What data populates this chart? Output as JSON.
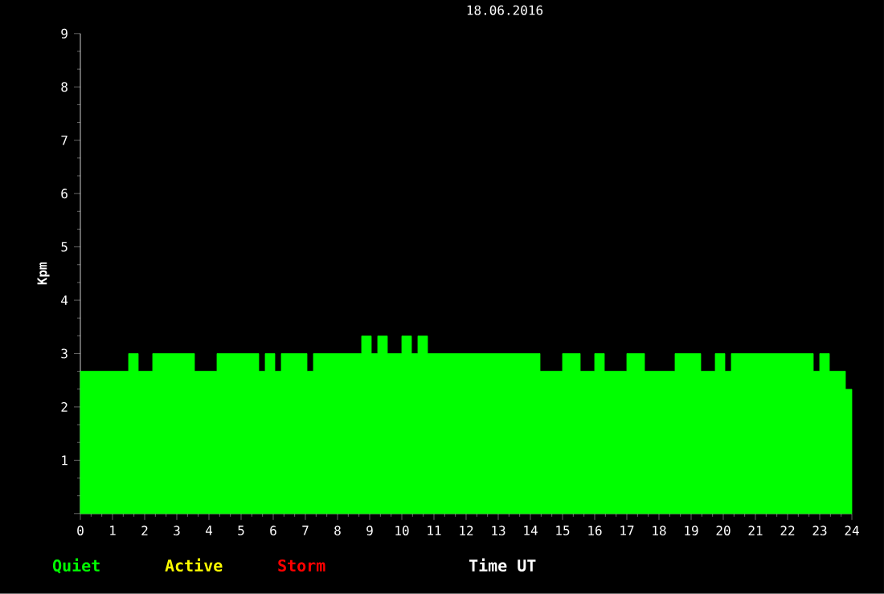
{
  "chart_data": {
    "type": "area",
    "title": "18.06.2016",
    "xlabel": "Time UT",
    "ylabel": "Kpm",
    "x": [
      0,
      1.5,
      1.8,
      2.25,
      3.55,
      4.25,
      5.55,
      5.75,
      6.05,
      6.25,
      7.05,
      7.25,
      8.75,
      9.05,
      9.25,
      9.55,
      10,
      10.3,
      10.5,
      10.8,
      14.3,
      15.0,
      15.55,
      16.0,
      16.3,
      17.0,
      17.55,
      18.5,
      19.3,
      19.75,
      20.05,
      20.25,
      22.8,
      23.0,
      23.3,
      23.8,
      24
    ],
    "series": [
      {
        "color": "#00ff00",
        "values": [
          2.67,
          3,
          2.67,
          3,
          2.67,
          3,
          2.67,
          3,
          2.67,
          3,
          2.67,
          3,
          3.33,
          3,
          3.33,
          3,
          3.33,
          3,
          3.33,
          3,
          2.67,
          3,
          2.67,
          3,
          2.67,
          3,
          2.67,
          3,
          2.67,
          3,
          2.67,
          3,
          2.67,
          3,
          2.67,
          2.33,
          2.33
        ]
      }
    ],
    "xlim": [
      0,
      24
    ],
    "xticks": [
      0,
      1,
      2,
      3,
      4,
      5,
      6,
      7,
      8,
      9,
      10,
      11,
      12,
      13,
      14,
      15,
      16,
      17,
      18,
      19,
      20,
      21,
      22,
      23,
      24
    ],
    "ylim": [
      0,
      9
    ],
    "yticks": [
      {
        "value": 0,
        "label": null
      },
      1,
      2,
      3,
      4,
      5,
      6,
      7,
      8,
      9
    ],
    "annotations": [
      "Quiet",
      "Active",
      "Storm"
    ]
  }
}
